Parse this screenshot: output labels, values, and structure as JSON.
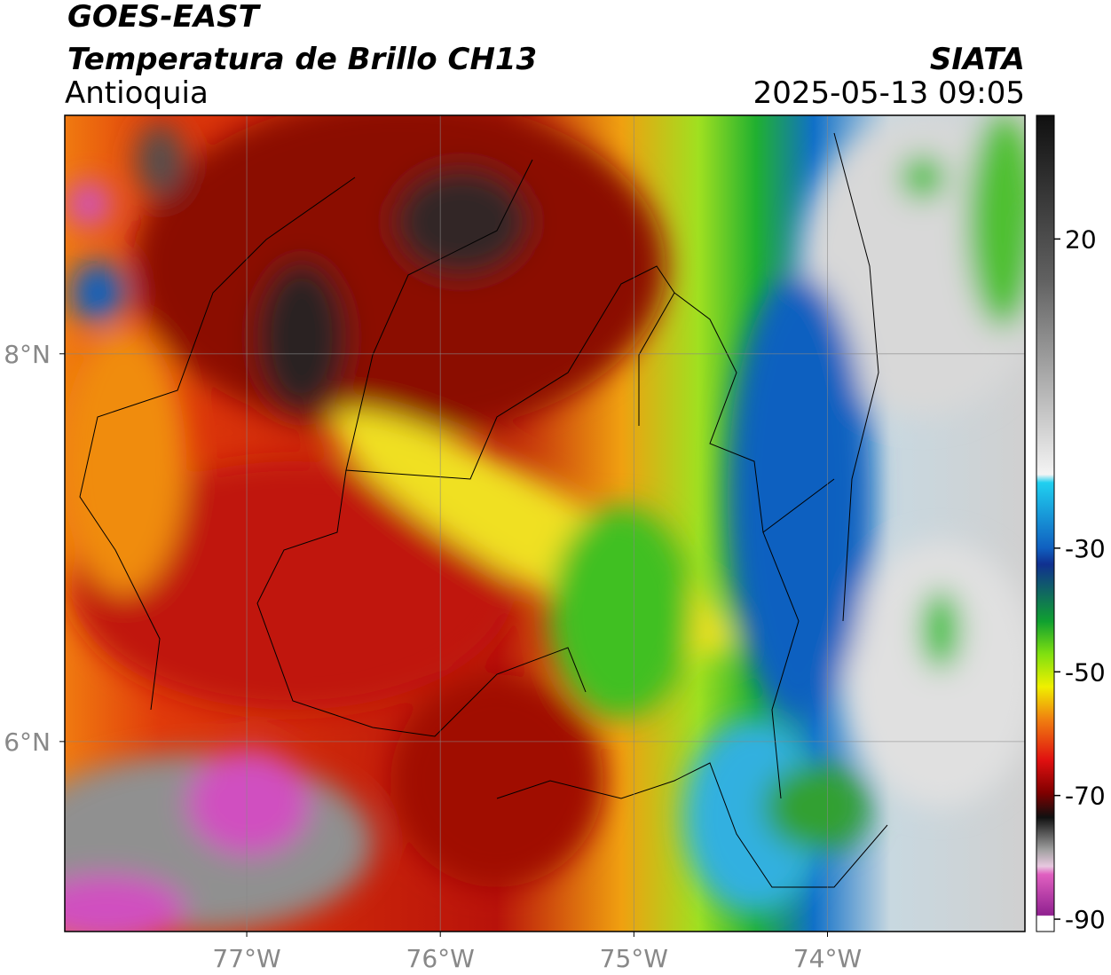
{
  "header": {
    "title": "GOES-EAST",
    "subtitle": "Temperatura de Brillo CH13",
    "region": "Antioquia",
    "source": "SIATA",
    "datetime": "2025-05-13 09:05"
  },
  "map": {
    "xlim": [
      -77.94,
      -72.98
    ],
    "ylim": [
      5.02,
      9.23
    ],
    "xticks": [
      {
        "value": -77,
        "label": "77°W"
      },
      {
        "value": -76,
        "label": "76°W"
      },
      {
        "value": -75,
        "label": "75°W"
      },
      {
        "value": -74,
        "label": "74°W"
      }
    ],
    "yticks": [
      {
        "value": 6,
        "label": "6°N"
      },
      {
        "value": 8,
        "label": "8°N"
      }
    ],
    "grid": true
  },
  "colorbar": {
    "ylim": [
      -92,
      40
    ],
    "yticks": [
      20,
      -30,
      -50,
      -70,
      -90
    ]
  }
}
